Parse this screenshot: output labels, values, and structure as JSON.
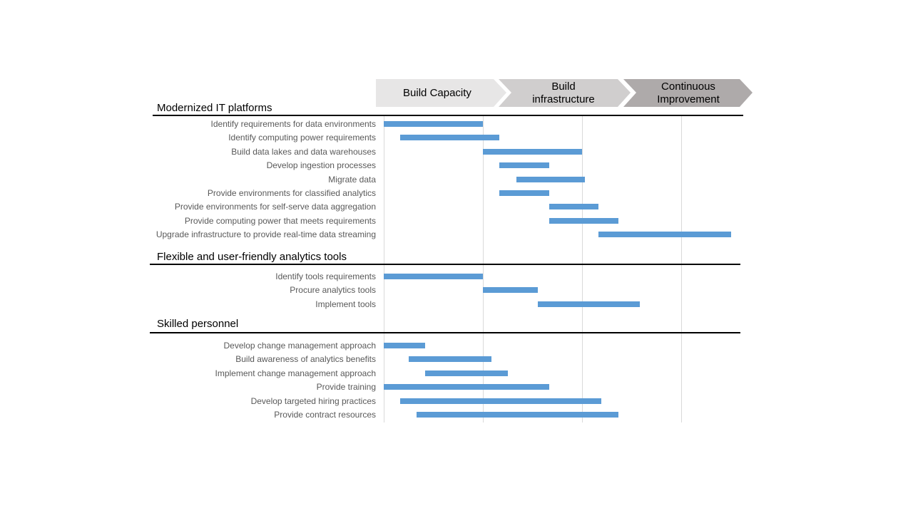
{
  "colors": {
    "bar": "#5b9bd5",
    "phase_1": "#e7e6e6",
    "phase_2": "#d0cece",
    "phase_3": "#aeaaaa",
    "gridline": "#d9d9d9"
  },
  "chart_data": {
    "type": "bar",
    "orientation": "gantt",
    "x_range": [
      0,
      6.4
    ],
    "grid": "vertical",
    "phases": [
      {
        "label": "Build Capacity",
        "start": 0,
        "end": 2.1
      },
      {
        "label": "Build\ninfrastructure",
        "start": 2.1,
        "end": 4.5
      },
      {
        "label": "Continuous\nImprovement",
        "start": 4.5,
        "end": 7
      }
    ],
    "sections": [
      {
        "title": "Modernized IT platforms",
        "tasks": [
          {
            "label": "Identify requirements for data environments",
            "start": 0,
            "end": 1.8
          },
          {
            "label": "Identify computing power requirements",
            "start": 0.3,
            "end": 2.1
          },
          {
            "label": "Build data lakes and data warehouses",
            "start": 1.8,
            "end": 3.6
          },
          {
            "label": "Develop ingestion processes",
            "start": 2.1,
            "end": 3.0
          },
          {
            "label": "Migrate data",
            "start": 2.4,
            "end": 3.65
          },
          {
            "label": "Provide environments for classified analytics",
            "start": 2.1,
            "end": 3.0
          },
          {
            "label": "Provide environments for self-serve data aggregation",
            "start": 3.0,
            "end": 3.9
          },
          {
            "label": "Provide computing power that meets requirements",
            "start": 3.0,
            "end": 4.25
          },
          {
            "label": "Upgrade infrastructure to provide real-time data streaming",
            "start": 3.9,
            "end": 6.3
          }
        ]
      },
      {
        "title": "Flexible and user-friendly  analytics tools",
        "tasks": [
          {
            "label": "Identify tools requirements",
            "start": 0,
            "end": 1.8
          },
          {
            "label": "Procure analytics tools",
            "start": 1.8,
            "end": 2.8
          },
          {
            "label": "Implement tools",
            "start": 2.8,
            "end": 4.65
          }
        ]
      },
      {
        "title": "Skilled personnel",
        "tasks": [
          {
            "label": "Develop change management approach",
            "start": 0,
            "end": 0.75
          },
          {
            "label": "Build awareness of analytics benefits",
            "start": 0.45,
            "end": 1.95
          },
          {
            "label": "Implement change management approach",
            "start": 0.75,
            "end": 2.25
          },
          {
            "label": "Provide training",
            "start": 0,
            "end": 3.0
          },
          {
            "label": "Develop targeted hiring practices",
            "start": 0.3,
            "end": 3.95
          },
          {
            "label": "Provide contract resources",
            "start": 0.6,
            "end": 4.25
          }
        ]
      }
    ]
  }
}
